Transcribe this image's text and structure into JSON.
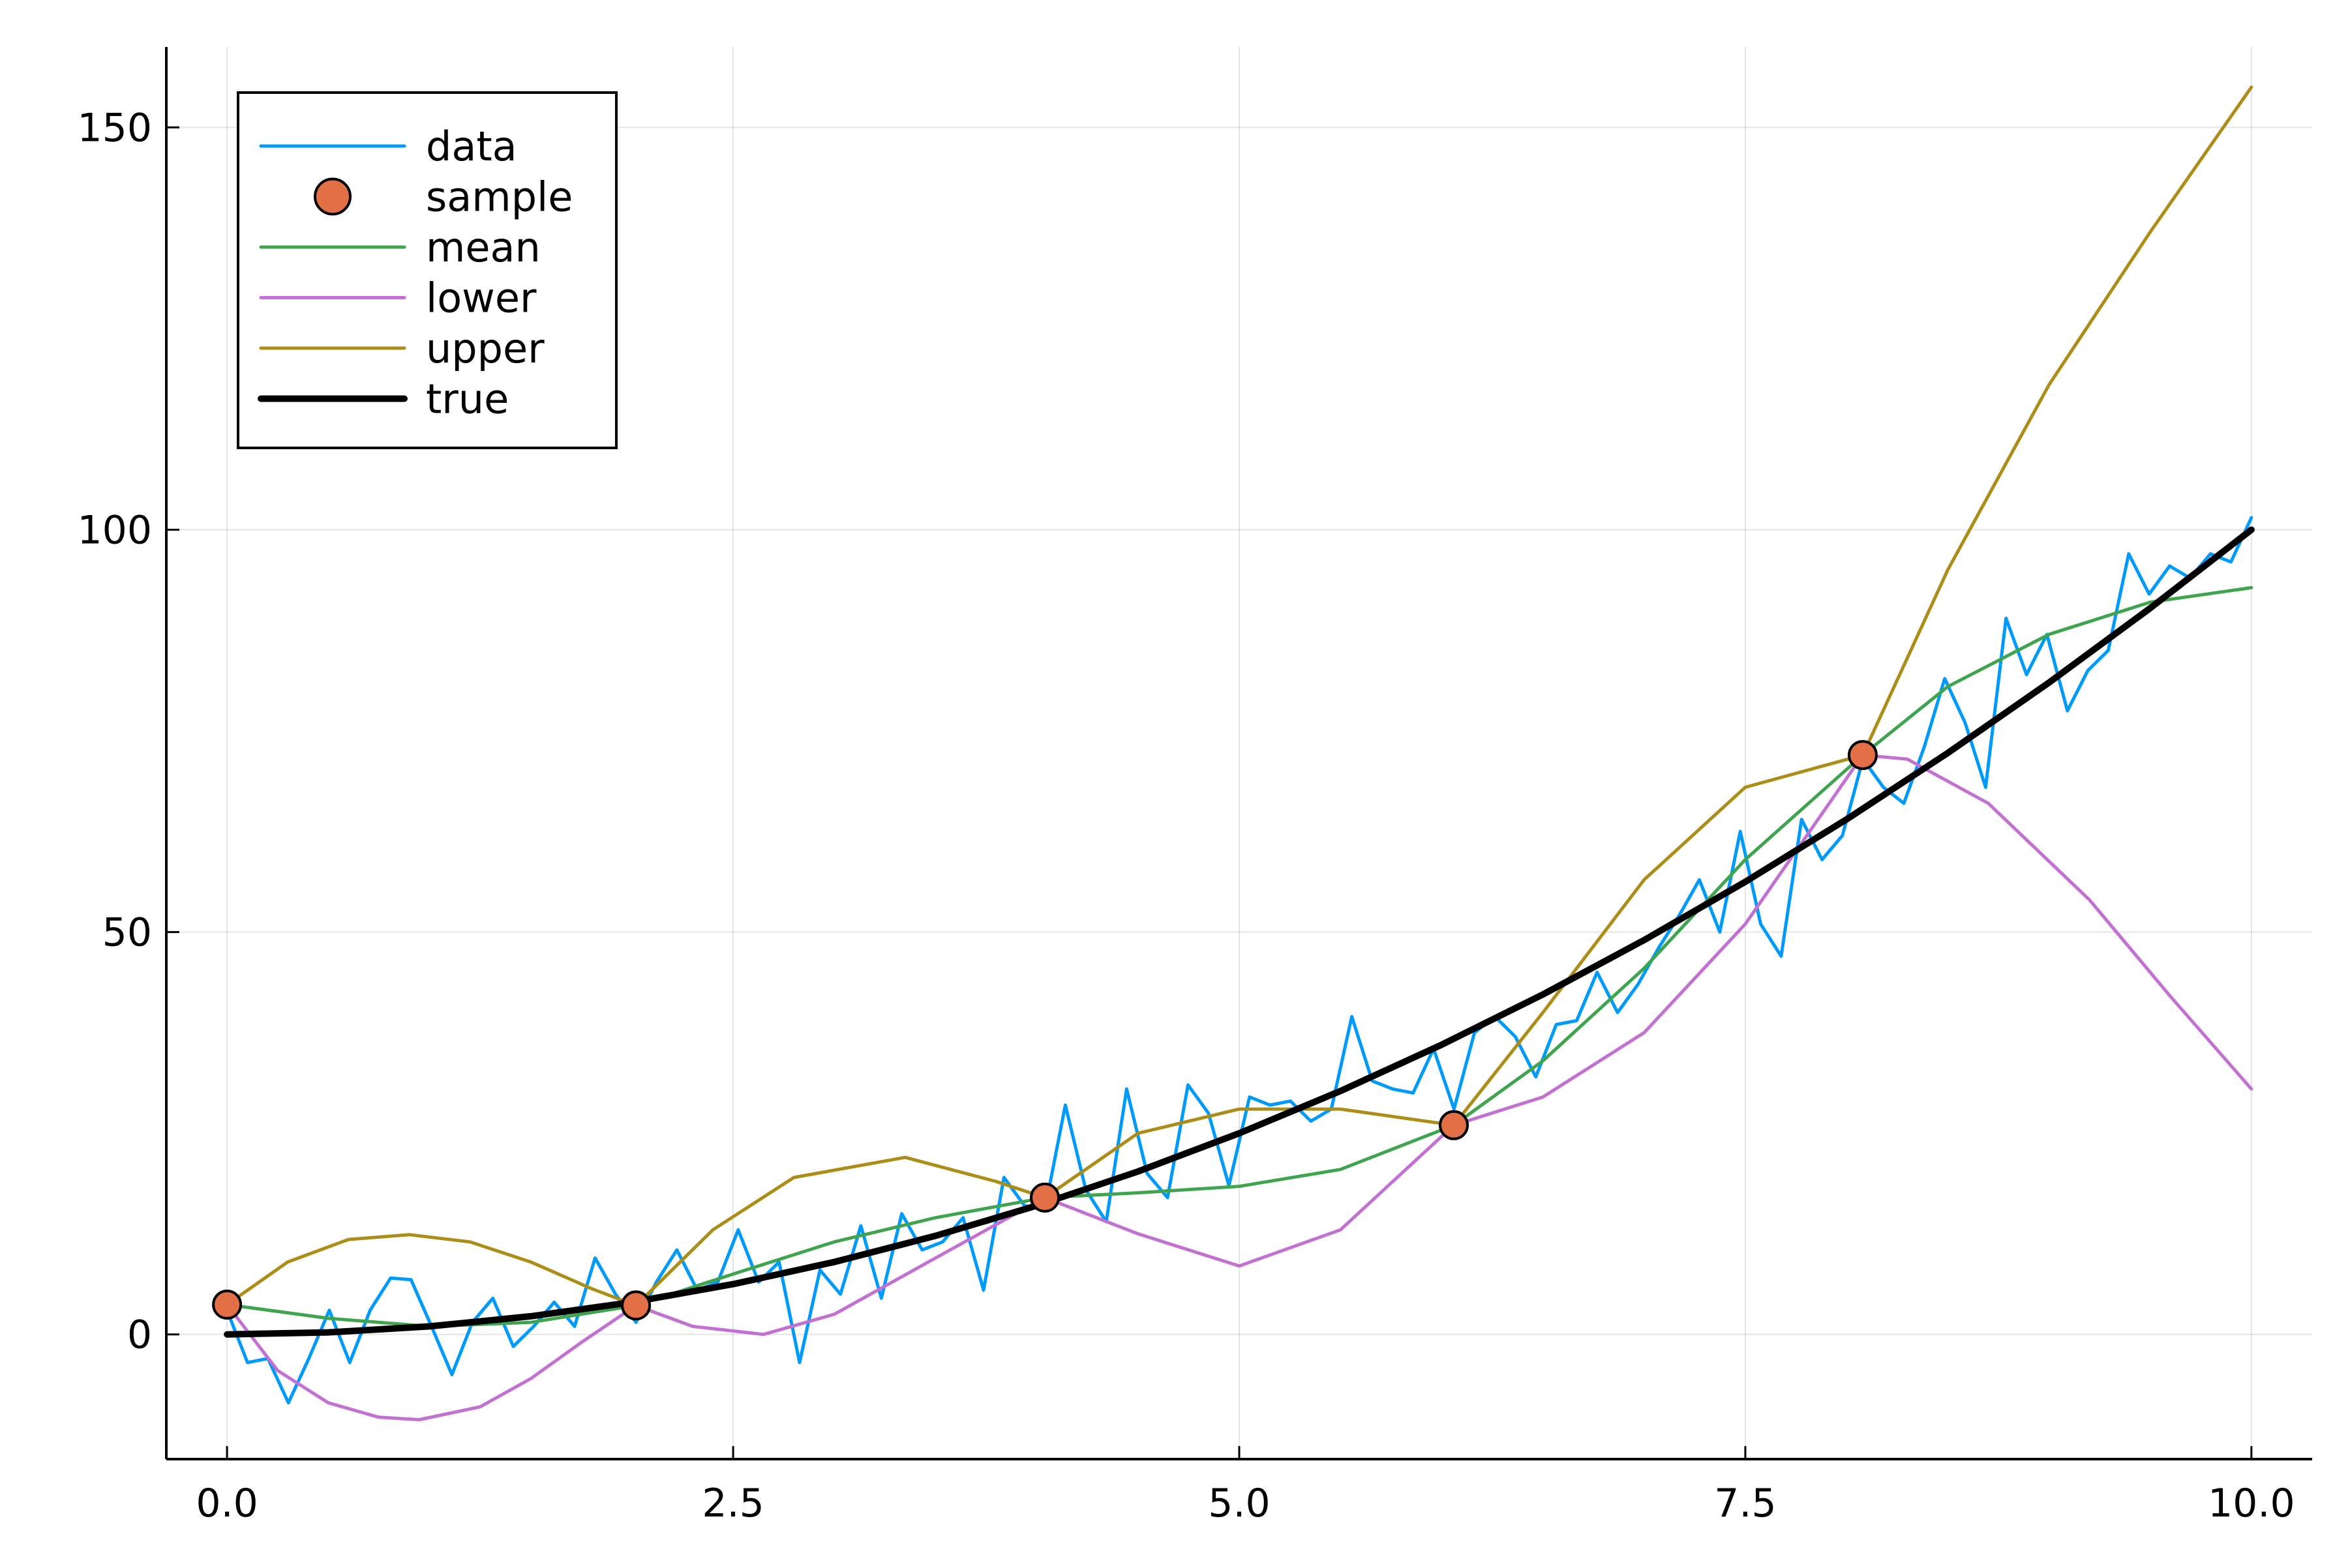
{
  "chart_data": {
    "type": "line",
    "title": "",
    "xlabel": "",
    "ylabel": "",
    "xlim": [
      -0.3,
      10.3
    ],
    "ylim": [
      -15.5,
      160
    ],
    "xticks": [
      0.0,
      2.5,
      5.0,
      7.5,
      10.0
    ],
    "xtick_labels": [
      "0.0",
      "2.5",
      "5.0",
      "7.5",
      "10.0"
    ],
    "yticks": [
      0,
      50,
      100,
      150
    ],
    "ytick_labels": [
      "0",
      "50",
      "100",
      "150"
    ],
    "grid": true,
    "legend_position": "top-left",
    "series": [
      {
        "name": "data",
        "kind": "line",
        "color": "#009AFA",
        "width": 5,
        "x": [
          0.0,
          0.101,
          0.202,
          0.303,
          0.404,
          0.505,
          0.606,
          0.707,
          0.808,
          0.909,
          1.01,
          1.111,
          1.212,
          1.313,
          1.414,
          1.515,
          1.616,
          1.717,
          1.818,
          1.919,
          2.02,
          2.121,
          2.222,
          2.323,
          2.424,
          2.525,
          2.626,
          2.727,
          2.828,
          2.929,
          3.03,
          3.131,
          3.232,
          3.333,
          3.434,
          3.535,
          3.636,
          3.737,
          3.838,
          3.939,
          4.04,
          4.141,
          4.242,
          4.343,
          4.444,
          4.545,
          4.646,
          4.747,
          4.848,
          4.949,
          5.051,
          5.152,
          5.253,
          5.354,
          5.455,
          5.556,
          5.657,
          5.758,
          5.859,
          5.96,
          6.061,
          6.162,
          6.263,
          6.364,
          6.465,
          6.566,
          6.667,
          6.768,
          6.869,
          6.97,
          7.071,
          7.172,
          7.273,
          7.374,
          7.475,
          7.576,
          7.677,
          7.778,
          7.879,
          7.98,
          8.081,
          8.182,
          8.283,
          8.384,
          8.485,
          8.586,
          8.687,
          8.788,
          8.889,
          8.99,
          9.091,
          9.192,
          9.293,
          9.394,
          9.495,
          9.596,
          9.697,
          9.798,
          9.899,
          10.0
        ],
        "y": [
          3.0,
          -3.5,
          -3.0,
          -8.5,
          -3.0,
          3.0,
          -3.5,
          3.0,
          7.0,
          6.8,
          1.0,
          -5.0,
          1.5,
          4.5,
          -1.5,
          1.0,
          4.0,
          1.0,
          9.5,
          5.0,
          1.5,
          6.5,
          10.5,
          5.5,
          6.5,
          13.0,
          6.5,
          9.0,
          -3.5,
          8.0,
          5.0,
          13.5,
          4.5,
          15.0,
          10.5,
          11.5,
          14.5,
          5.5,
          19.5,
          16.0,
          15.5,
          28.5,
          18.0,
          14.0,
          30.5,
          20.0,
          17.0,
          31.0,
          27.5,
          18.5,
          29.5,
          28.5,
          29.0,
          26.5,
          28.0,
          39.5,
          31.5,
          30.5,
          30.0,
          35.5,
          28.0,
          37.5,
          39.5,
          37.0,
          32.0,
          38.5,
          39.0,
          45.0,
          40.0,
          43.5,
          48.0,
          52.0,
          56.5,
          50.0,
          62.5,
          51.0,
          47.0,
          64.0,
          59.0,
          62.0,
          71.5,
          68.0,
          66.0,
          73.0,
          81.5,
          76.0,
          68.0,
          89.0,
          82.0,
          87.0,
          77.5,
          82.5,
          85.0,
          97.0,
          92.0,
          95.5,
          94.0,
          97.0,
          96.0,
          101.5
        ]
      },
      {
        "name": "sample",
        "kind": "scatter",
        "color": "#E26F46",
        "x": [
          0.0,
          2.02,
          4.04,
          6.06,
          8.08
        ],
        "y": [
          3.7,
          3.6,
          17.0,
          26.0,
          72.0
        ]
      },
      {
        "name": "mean",
        "kind": "line",
        "color": "#3EA44E",
        "width": 5,
        "x": [
          0.0,
          0.5,
          1.0,
          1.5,
          2.02,
          2.5,
          3.0,
          3.5,
          4.04,
          4.5,
          5.0,
          5.5,
          6.06,
          6.5,
          7.0,
          7.5,
          8.08,
          8.5,
          9.0,
          9.5,
          10.0
        ],
        "y": [
          3.7,
          2.0,
          1.0,
          1.5,
          3.6,
          7.5,
          11.5,
          14.5,
          17.0,
          17.6,
          18.4,
          20.5,
          26.0,
          34.0,
          45.5,
          59.0,
          72.0,
          80.5,
          87.0,
          91.0,
          92.8
        ]
      },
      {
        "name": "lower",
        "kind": "line",
        "color": "#C270D2",
        "width": 5,
        "x": [
          0.0,
          0.25,
          0.5,
          0.75,
          0.95,
          1.25,
          1.5,
          1.75,
          2.02,
          2.3,
          2.65,
          3.0,
          3.5,
          4.04,
          4.5,
          5.0,
          5.5,
          6.06,
          6.5,
          7.0,
          7.5,
          8.08,
          8.3,
          8.7,
          9.2,
          9.6,
          10.0
        ],
        "y": [
          3.7,
          -4.5,
          -8.5,
          -10.3,
          -10.6,
          -9.0,
          -5.5,
          -1.0,
          3.6,
          1.0,
          0.0,
          2.5,
          9.5,
          17.0,
          12.5,
          8.5,
          13.0,
          26.0,
          29.5,
          37.5,
          51.0,
          72.0,
          71.5,
          66.0,
          54.0,
          42.0,
          30.5
        ]
      },
      {
        "name": "upper",
        "kind": "line",
        "color": "#AC8D18",
        "width": 5,
        "x": [
          0.0,
          0.3,
          0.6,
          0.9,
          1.2,
          1.5,
          1.8,
          2.02,
          2.4,
          2.8,
          3.35,
          3.8,
          4.04,
          4.5,
          5.0,
          5.5,
          6.06,
          6.5,
          7.0,
          7.5,
          8.08,
          8.5,
          9.0,
          9.5,
          10.0
        ],
        "y": [
          3.7,
          9.0,
          11.8,
          12.4,
          11.5,
          9.0,
          5.7,
          3.6,
          13.0,
          19.5,
          22.0,
          19.0,
          17.0,
          25.0,
          28.0,
          28.0,
          26.0,
          40.0,
          56.5,
          68.0,
          72.0,
          95.0,
          118.0,
          137.0,
          155.0
        ]
      },
      {
        "name": "true",
        "kind": "line",
        "color": "#000000",
        "width": 10,
        "x": [
          0.0,
          0.5,
          1.0,
          1.5,
          2.0,
          2.5,
          3.0,
          3.5,
          4.0,
          4.5,
          5.0,
          5.5,
          6.0,
          6.5,
          7.0,
          7.5,
          8.0,
          8.5,
          9.0,
          9.5,
          10.0
        ],
        "y": [
          0.0,
          0.25,
          1.0,
          2.25,
          4.0,
          6.25,
          9.0,
          12.25,
          16.0,
          20.25,
          25.0,
          30.25,
          36.0,
          42.25,
          49.0,
          56.25,
          64.0,
          72.25,
          81.0,
          90.25,
          100.0
        ]
      }
    ]
  }
}
